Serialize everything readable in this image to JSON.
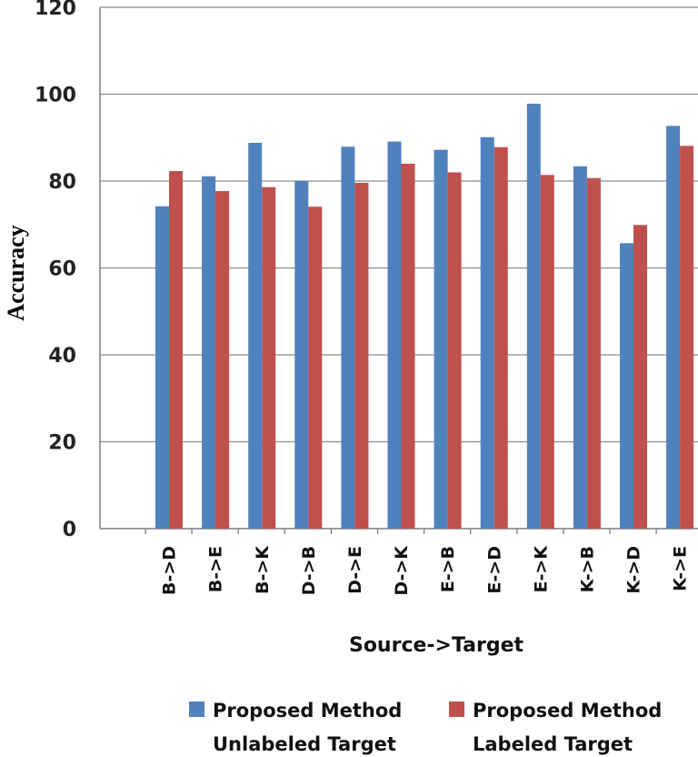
{
  "chart_data": {
    "type": "bar",
    "title": "",
    "xlabel": "Source->Target",
    "ylabel": "Accuracy",
    "ylim": [
      0,
      120
    ],
    "yticks": [
      0,
      20,
      40,
      60,
      80,
      100,
      120
    ],
    "grid": true,
    "legend_position": "bottom",
    "categories": [
      "B->D",
      "B->E",
      "B->K",
      "D->B",
      "D->E",
      "D->K",
      "E->B",
      "E->D",
      "E->K",
      "K->B",
      "K->D",
      "K->E"
    ],
    "series": [
      {
        "name": "Proposed Method Unlabeled Target",
        "legend_lines": [
          "Proposed Method",
          "Unlabeled Target"
        ],
        "color": "#4f81bd",
        "values": [
          74.2,
          81.1,
          88.8,
          80.0,
          87.9,
          89.1,
          87.2,
          90.1,
          97.8,
          83.4,
          65.7,
          92.7
        ]
      },
      {
        "name": "Proposed Method Labeled Target",
        "legend_lines": [
          "Proposed Method",
          "Labeled Target"
        ],
        "color": "#c0504d",
        "values": [
          82.3,
          77.7,
          78.6,
          74.1,
          79.6,
          84.0,
          82.0,
          87.8,
          81.4,
          80.7,
          69.9,
          88.1
        ]
      }
    ]
  }
}
